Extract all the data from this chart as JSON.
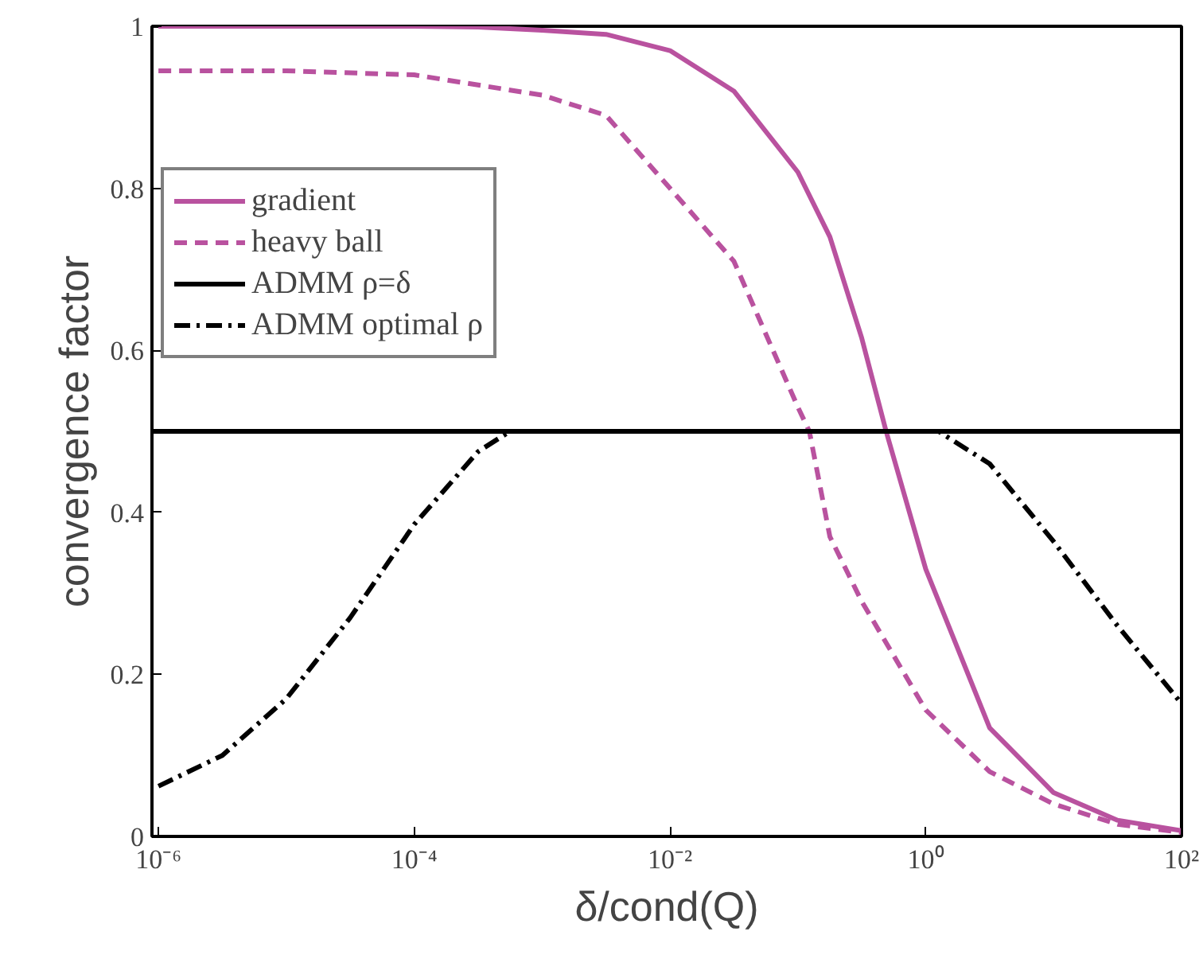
{
  "chart_data": {
    "type": "line",
    "xlabel": "δ/cond(Q)",
    "ylabel": "convergence factor",
    "log": "x",
    "grid": false,
    "legend": "top left",
    "xlim": [
      8.9e-07,
      100
    ],
    "ylim": [
      0,
      1
    ],
    "xticks": [
      {
        "value": 1e-06,
        "label": "10⁻⁶"
      },
      {
        "value": 0.0001,
        "label": "10⁻⁴"
      },
      {
        "value": 0.01,
        "label": "10⁻²"
      },
      {
        "value": 1,
        "label": "10⁰"
      },
      {
        "value": 100,
        "label": "10²"
      }
    ],
    "yticks": [
      0,
      0.2,
      0.4,
      0.6,
      0.8,
      1
    ],
    "series": [
      {
        "name": "gradient",
        "color": "#b9529f",
        "line_style": "solid",
        "x": [
          1e-06,
          0.0001,
          0.000316,
          0.001,
          0.00316,
          0.01,
          0.0316,
          0.1,
          0.178,
          0.316,
          0.49,
          1,
          3.16,
          10,
          31.6,
          100
        ],
        "values": [
          1,
          1,
          0.999,
          0.995,
          0.99,
          0.97,
          0.92,
          0.82,
          0.74,
          0.615,
          0.5,
          0.33,
          0.134,
          0.054,
          0.02,
          0.007
        ]
      },
      {
        "name": "heavy ball",
        "color": "#b9529f",
        "line_style": "dashed",
        "x": [
          1e-06,
          1e-05,
          0.0001,
          0.001,
          0.00316,
          0.01,
          0.0316,
          0.1,
          0.123,
          0.178,
          0.316,
          1,
          3.16,
          10,
          31.6,
          100
        ],
        "values": [
          0.945,
          0.945,
          0.94,
          0.915,
          0.89,
          0.8,
          0.71,
          0.53,
          0.5,
          0.37,
          0.29,
          0.156,
          0.08,
          0.04,
          0.015,
          0.005
        ]
      },
      {
        "name": "ADMM ρ=δ",
        "color": "#000000",
        "line_style": "solid",
        "x": [
          8.9e-07,
          100
        ],
        "values": [
          0.5,
          0.5
        ]
      },
      {
        "name": "ADMM optimal ρ",
        "color": "#000000",
        "line_style": "dashdot",
        "x": [
          1e-06,
          3.16e-06,
          1e-05,
          3.16e-05,
          0.0001,
          0.000316,
          0.00056,
          0.01,
          1,
          1.26,
          3.16,
          10,
          31.6,
          100
        ],
        "values": [
          0.062,
          0.1,
          0.17,
          0.27,
          0.385,
          0.475,
          0.5,
          0.5,
          0.5,
          0.5,
          0.46,
          0.364,
          0.26,
          0.164
        ]
      }
    ]
  }
}
